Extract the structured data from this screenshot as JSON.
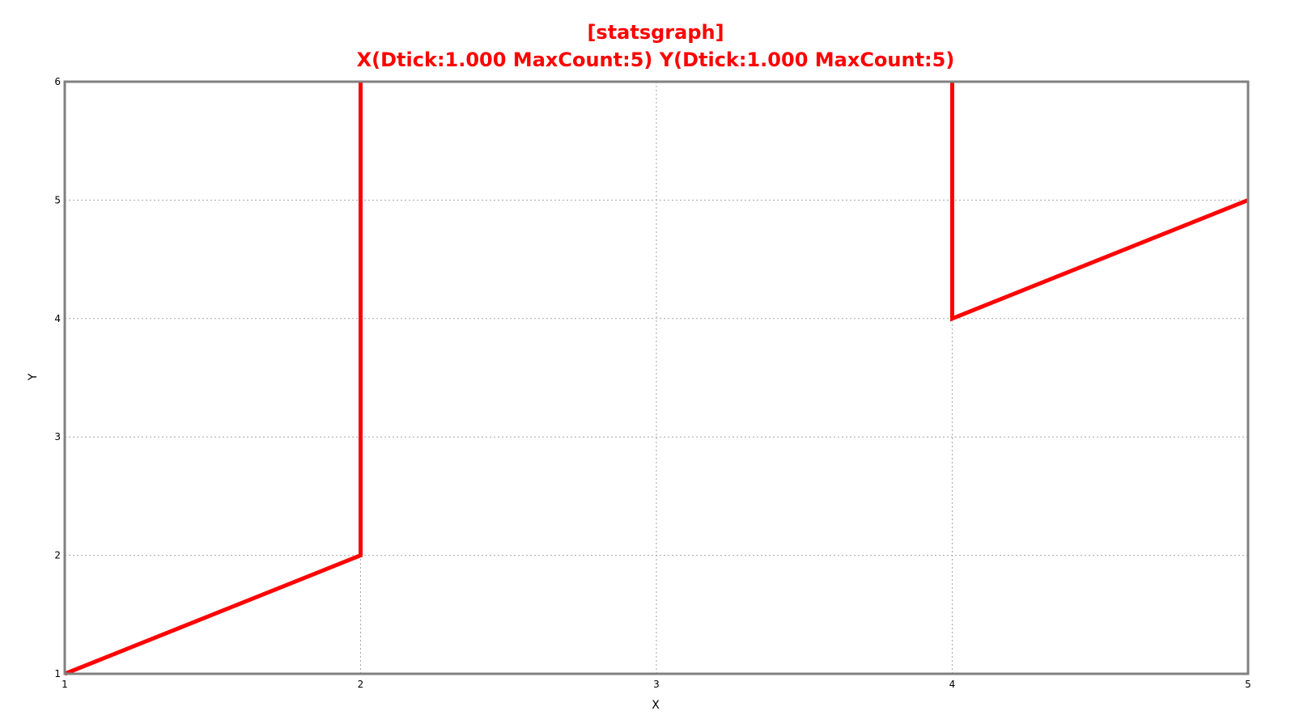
{
  "chart_data": {
    "type": "line",
    "title": "[statsgraph]",
    "subtitle": "X(Dtick:1.000 MaxCount:5) Y(Dtick:1.000 MaxCount:5)",
    "xlabel": "X",
    "ylabel": "Y",
    "xlim": [
      1,
      5
    ],
    "ylim": [
      1,
      6
    ],
    "x_ticks": [
      "1",
      "2",
      "3",
      "4",
      "5"
    ],
    "y_ticks": [
      "1",
      "2",
      "3",
      "4",
      "5",
      "6"
    ],
    "x_tick_values": [
      1,
      2,
      3,
      4,
      5
    ],
    "y_tick_values": [
      1,
      2,
      3,
      4,
      5,
      6
    ],
    "grid": true,
    "series": [
      {
        "color": "#ff0000",
        "points": [
          {
            "x": 1,
            "y": 1
          },
          {
            "x": 2,
            "y": 2
          },
          {
            "x": 2,
            "y": 6
          }
        ]
      },
      {
        "color": "#ff0000",
        "points": [
          {
            "x": 4,
            "y": 6
          },
          {
            "x": 4,
            "y": 4
          },
          {
            "x": 5,
            "y": 5
          }
        ]
      }
    ]
  }
}
